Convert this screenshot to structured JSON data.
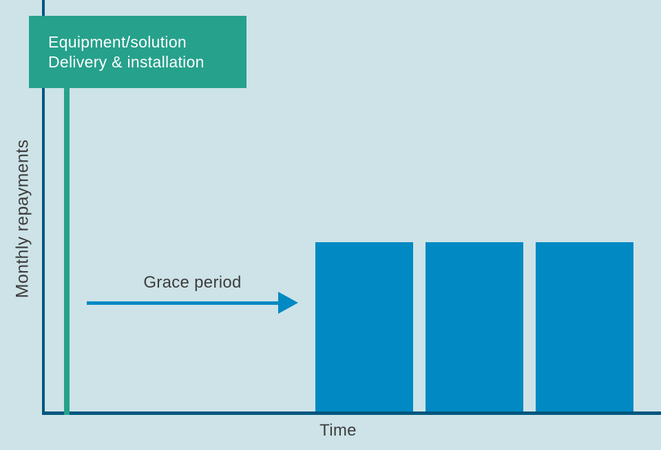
{
  "colors": {
    "background": "#cde3e8",
    "axis": "#00577e",
    "bar": "#0089c3",
    "teal": "#26a18c",
    "text_dark": "#3d3d3d",
    "text_light": "#ffffff"
  },
  "labels": {
    "event_line1": "Equipment/solution",
    "event_line2": "Delivery & installation",
    "grace_period": "Grace period",
    "xlabel": "Time",
    "ylabel": "Monthly repayments"
  },
  "chart_data": {
    "type": "bar",
    "title": "",
    "xlabel": "Time",
    "ylabel": "Monthly repayments",
    "categories": [
      "",
      "",
      ""
    ],
    "values": [
      1,
      1,
      1
    ],
    "value_note": "Schematic chart: no numeric scale; three equal-height repayment bars begin after the grace period",
    "ylim": [
      0,
      1
    ],
    "grid": false,
    "legend": false,
    "annotations": [
      {
        "id": "event-box",
        "text_lines": [
          "Equipment/solution",
          "Delivery & installation"
        ],
        "style": "teal filled box with vertical drop line at time zero"
      },
      {
        "id": "grace-period-arrow",
        "text": "Grace period",
        "style": "horizontal blue right-arrow spanning from time zero to the first bar"
      }
    ]
  }
}
